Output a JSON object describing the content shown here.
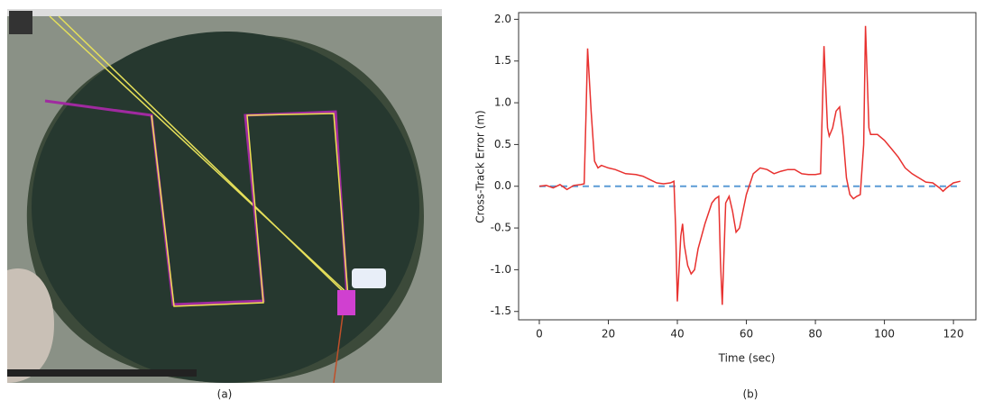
{
  "panel_a": {
    "caption": "(a)"
  },
  "chart_data": {
    "type": "line",
    "caption": "(b)",
    "xlabel": "Time (sec)",
    "ylabel": "Cross-Track Error (m)",
    "xlim": [
      -6,
      126.5
    ],
    "ylim": [
      -1.6,
      2.08
    ],
    "xticks": [
      0,
      20,
      40,
      60,
      80,
      100,
      120
    ],
    "yticks": [
      -1.5,
      {
        "value": -1,
        "label": "-1.0"
      },
      -0.5,
      {
        "value": 0,
        "label": "0.0"
      },
      0.5,
      {
        "value": 1,
        "label": "1.0"
      },
      1.5,
      {
        "value": 2,
        "label": "2.0"
      }
    ],
    "reference_line": {
      "value": 0,
      "color": "#5b9bd5"
    },
    "x": [
      0,
      2,
      4,
      6,
      8,
      10,
      12,
      13,
      13.5,
      14,
      15,
      16,
      17,
      18,
      20,
      22,
      25,
      28,
      30,
      32,
      34,
      36,
      38,
      39,
      39.5,
      40,
      41,
      41.5,
      42,
      43,
      44,
      45,
      46,
      48,
      50,
      51,
      52,
      52.5,
      53,
      54,
      55,
      56,
      57,
      58,
      60,
      62,
      64,
      66,
      68,
      70,
      72,
      74,
      76,
      78,
      80,
      81.5,
      82,
      82.5,
      83.5,
      84,
      85,
      86,
      87,
      88,
      89,
      90,
      91,
      92,
      93,
      94,
      94.5,
      95.5,
      96,
      98,
      100,
      102,
      104,
      106,
      108,
      110,
      112,
      114,
      116,
      117,
      118,
      120,
      122
    ],
    "series": [
      {
        "color": "#e8312f",
        "values": [
          0,
          0.01,
          -0.02,
          0.02,
          -0.04,
          0.01,
          0.02,
          0.03,
          0.8,
          1.65,
          0.9,
          0.3,
          0.22,
          0.25,
          0.22,
          0.2,
          0.15,
          0.14,
          0.12,
          0.08,
          0.04,
          0.03,
          0.04,
          0.06,
          -0.5,
          -1.38,
          -0.6,
          -0.45,
          -0.7,
          -0.95,
          -1.05,
          -1.0,
          -0.75,
          -0.45,
          -0.2,
          -0.15,
          -0.12,
          -0.9,
          -1.42,
          -0.2,
          -0.12,
          -0.3,
          -0.55,
          -0.5,
          -0.1,
          0.15,
          0.22,
          0.2,
          0.15,
          0.18,
          0.2,
          0.2,
          0.15,
          0.14,
          0.14,
          0.15,
          0.9,
          1.68,
          0.7,
          0.6,
          0.7,
          0.9,
          0.95,
          0.6,
          0.1,
          -0.1,
          -0.15,
          -0.12,
          -0.1,
          0.5,
          1.92,
          0.7,
          0.62,
          0.62,
          0.55,
          0.45,
          0.35,
          0.22,
          0.15,
          0.1,
          0.05,
          0.04,
          -0.02,
          -0.06,
          -0.02,
          0.04,
          0.06
        ]
      }
    ]
  }
}
